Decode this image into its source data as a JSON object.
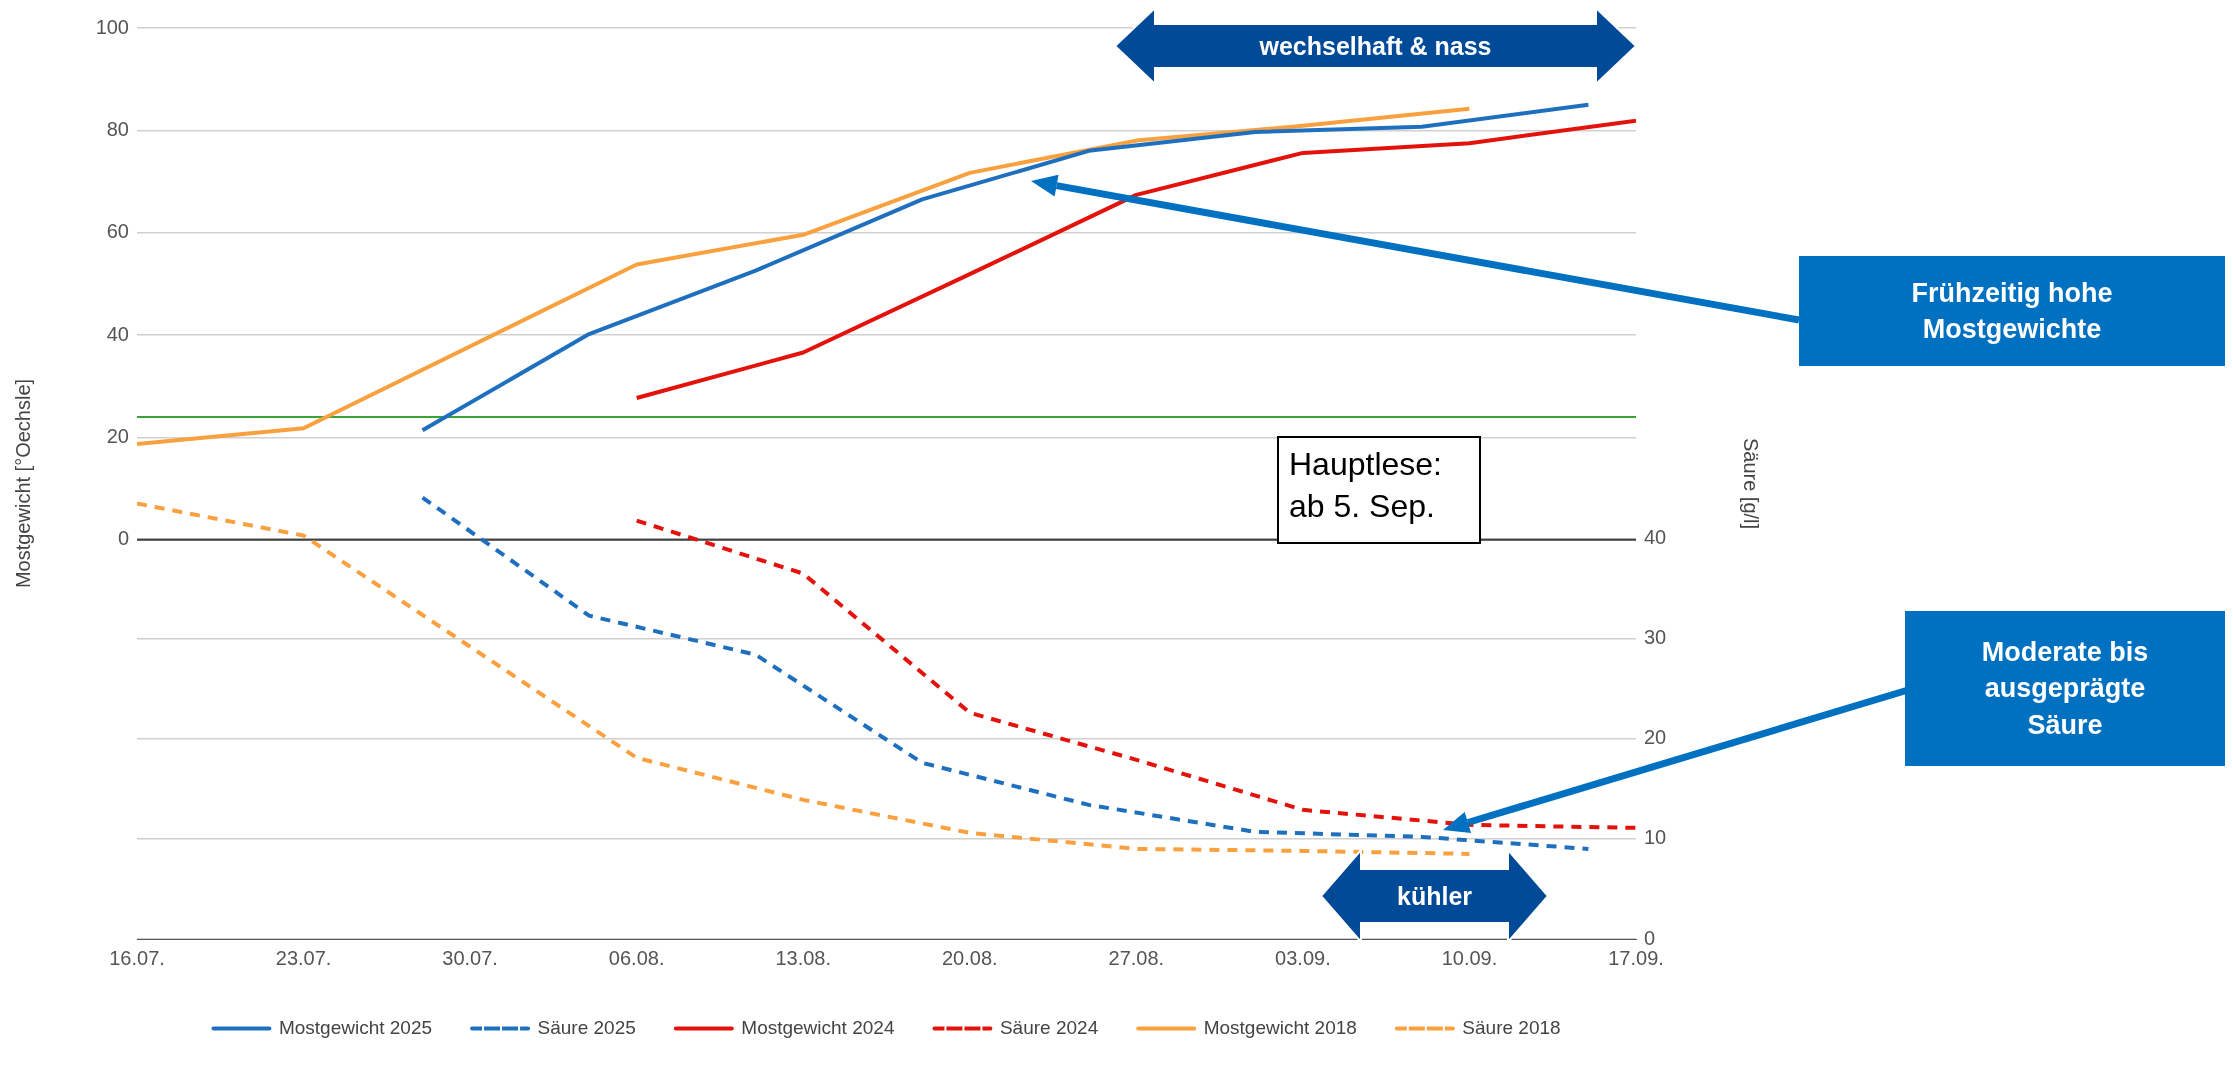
{
  "chart_data": {
    "type": "line",
    "ylabel": "Mostgewicht [°Oechsle]",
    "y2label": "Säure [g/l]",
    "xlim": [
      "--07-16",
      "--09-17"
    ],
    "xticks": [
      {
        "value": "--07-16",
        "label": "16.07."
      },
      {
        "value": "--07-23",
        "label": "23.07."
      },
      {
        "value": "--07-30",
        "label": "30.07."
      },
      {
        "value": "--08-06",
        "label": "06.08."
      },
      {
        "value": "--08-13",
        "label": "13.08."
      },
      {
        "value": "--08-20",
        "label": "20.08."
      },
      {
        "value": "--08-27",
        "label": "27.08."
      },
      {
        "value": "--09-03",
        "label": "03.09."
      },
      {
        "value": "--09-10",
        "label": "10.09."
      },
      {
        "value": "--09-17",
        "label": "17.09."
      }
    ],
    "ylim": [
      -78,
      100
    ],
    "yticks": [
      0,
      20,
      40,
      60,
      80,
      100
    ],
    "y2lim": [
      0,
      91
    ],
    "y2ticks": [
      0,
      10,
      20,
      30,
      40
    ],
    "grid": "y",
    "legend": "bottom",
    "marker": "none",
    "series": [
      {
        "name": "Mostgewicht 2025",
        "color": "#1f6fbf",
        "line_style": "solid",
        "x": [
          "--07-28",
          "--08-04",
          "--08-11",
          "--08-18",
          "--08-25",
          "--09-01",
          "--09-08",
          "--09-15"
        ],
        "values": [
          21.4,
          40.2,
          52.6,
          66.5,
          76,
          79.7,
          80.7,
          85
        ]
      },
      {
        "name": "Säure 2025",
        "color": "#1f6fbf",
        "line_style": "dashed",
        "axis": "y2",
        "x": [
          "--07-28",
          "--08-04",
          "--08-11",
          "--08-18",
          "--08-25",
          "--09-01",
          "--09-08",
          "--09-15"
        ],
        "values": [
          44.1,
          32.3,
          28.4,
          17.6,
          13.4,
          10.7,
          10.2,
          9
        ]
      },
      {
        "name": "Mostgewicht 2024",
        "color": "#e3120b",
        "line_style": "solid",
        "x": [
          "--08-06",
          "--08-13",
          "--08-20",
          "--08-27",
          "--09-03",
          "--09-10",
          "--09-17"
        ],
        "values": [
          27.7,
          36.6,
          51.9,
          67.4,
          75.6,
          77.5,
          81.9
        ]
      },
      {
        "name": "Säure 2024",
        "color": "#e3120b",
        "line_style": "dashed",
        "axis": "y2",
        "x": [
          "--08-06",
          "--08-13",
          "--08-20",
          "--08-27",
          "--09-03",
          "--09-10",
          "--09-17"
        ],
        "values": [
          41.8,
          36.5,
          22.6,
          17.9,
          12.9,
          11.4,
          11.1
        ]
      },
      {
        "name": "Mostgewicht 2018",
        "color": "#f9a03f",
        "line_style": "solid",
        "x": [
          "--07-16",
          "--07-23",
          "--08-06",
          "--08-13",
          "--08-20",
          "--08-27",
          "--09-03",
          "--09-10"
        ],
        "values": [
          18.7,
          21.8,
          53.8,
          59.6,
          71.7,
          78,
          80.9,
          84.2
        ]
      },
      {
        "name": "Säure 2018",
        "color": "#f9a03f",
        "line_style": "dashed",
        "axis": "y2",
        "x": [
          "--07-16",
          "--07-23",
          "--08-06",
          "--08-13",
          "--08-20",
          "--08-27",
          "--09-03",
          "--09-10"
        ],
        "values": [
          43.5,
          40.3,
          18.1,
          13.9,
          10.6,
          9,
          8.8,
          8.5
        ]
      }
    ],
    "ref_lines": [
      {
        "axis": "y",
        "value": 24,
        "color": "#3aa335"
      },
      {
        "axis": "y",
        "value": 0,
        "color": "#404040"
      }
    ],
    "annotations": [
      "wechselhaft & nass",
      "Frühzeitig hohe Mostgewichte",
      "Hauptlese: ab 5. Sep.",
      "Moderate bis ausgeprägte Säure",
      "kühler"
    ]
  }
}
